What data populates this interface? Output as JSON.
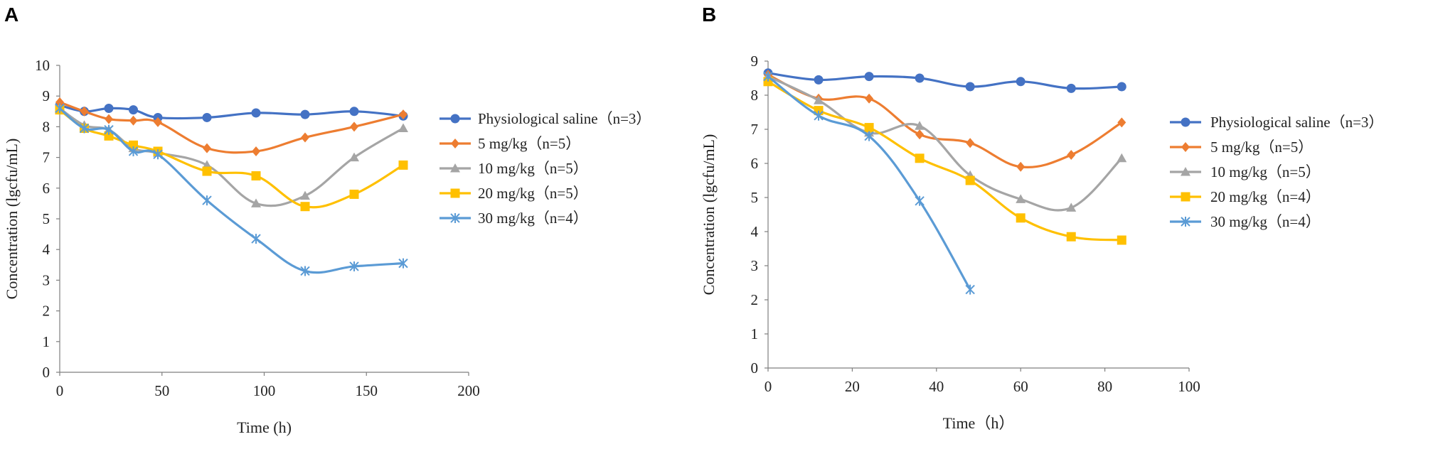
{
  "chart_data": [
    {
      "panel": "A",
      "type": "line",
      "title": "",
      "xlabel": "Time (h)",
      "ylabel": "Concentration (lgcfu/mL)",
      "xlim": [
        0,
        200
      ],
      "ylim": [
        0,
        10
      ],
      "xticks": [
        0,
        50,
        100,
        150,
        200
      ],
      "yticks": [
        0,
        1,
        2,
        3,
        4,
        5,
        6,
        7,
        8,
        9,
        10
      ],
      "grid": false,
      "legend_position": "right",
      "series": [
        {
          "name": "Physiological saline（n=3）",
          "color": "#4472C4",
          "marker": "circle",
          "x": [
            0,
            12,
            24,
            36,
            48,
            72,
            96,
            120,
            144,
            168
          ],
          "y": [
            8.7,
            8.5,
            8.6,
            8.55,
            8.3,
            8.3,
            8.45,
            8.4,
            8.5,
            8.35
          ]
        },
        {
          "name": "5 mg/kg（n=5）",
          "color": "#ED7D31",
          "marker": "diamond",
          "x": [
            0,
            12,
            24,
            36,
            48,
            72,
            96,
            120,
            144,
            168
          ],
          "y": [
            8.8,
            8.5,
            8.25,
            8.2,
            8.15,
            7.3,
            7.2,
            7.65,
            8.0,
            8.4
          ]
        },
        {
          "name": "10 mg/kg（n=5）",
          "color": "#A5A5A5",
          "marker": "triangle",
          "x": [
            0,
            12,
            24,
            36,
            48,
            72,
            96,
            120,
            144,
            168
          ],
          "y": [
            8.6,
            8.05,
            7.9,
            7.3,
            7.15,
            6.75,
            5.5,
            5.75,
            7.0,
            7.95
          ]
        },
        {
          "name": "20 mg/kg（n=5）",
          "color": "#FFC000",
          "marker": "square",
          "x": [
            0,
            12,
            24,
            36,
            48,
            72,
            96,
            120,
            144,
            168
          ],
          "y": [
            8.55,
            7.95,
            7.7,
            7.4,
            7.2,
            6.55,
            6.4,
            5.4,
            5.8,
            6.75
          ]
        },
        {
          "name": "30 mg/kg（n=4）",
          "color": "#5B9BD5",
          "marker": "x",
          "x": [
            0,
            12,
            24,
            36,
            48,
            72,
            96,
            120,
            144,
            168
          ],
          "y": [
            8.6,
            7.95,
            7.9,
            7.2,
            7.1,
            5.6,
            4.35,
            3.3,
            3.45,
            3.55
          ]
        }
      ]
    },
    {
      "panel": "B",
      "type": "line",
      "title": "",
      "xlabel": "Time（h）",
      "ylabel": "Concentration (lgcfu/mL)",
      "xlim": [
        0,
        100
      ],
      "ylim": [
        0,
        9
      ],
      "xticks": [
        0,
        20,
        40,
        60,
        80,
        100
      ],
      "yticks": [
        0,
        1,
        2,
        3,
        4,
        5,
        6,
        7,
        8,
        9
      ],
      "grid": false,
      "legend_position": "right",
      "series": [
        {
          "name": "Physiological saline（n=3）",
          "color": "#4472C4",
          "marker": "circle",
          "x": [
            0,
            12,
            24,
            36,
            48,
            60,
            72,
            84
          ],
          "y": [
            8.65,
            8.45,
            8.55,
            8.5,
            8.25,
            8.4,
            8.2,
            8.25
          ]
        },
        {
          "name": "5 mg/kg（n=5）",
          "color": "#ED7D31",
          "marker": "diamond",
          "x": [
            0,
            12,
            24,
            36,
            48,
            60,
            72,
            84
          ],
          "y": [
            8.6,
            7.9,
            7.9,
            6.85,
            6.6,
            5.9,
            6.25,
            7.2
          ]
        },
        {
          "name": "10 mg/kg（n=5）",
          "color": "#A5A5A5",
          "marker": "triangle",
          "x": [
            0,
            12,
            24,
            36,
            48,
            60,
            72,
            84
          ],
          "y": [
            8.55,
            7.85,
            6.9,
            7.1,
            5.65,
            4.95,
            4.7,
            6.15
          ]
        },
        {
          "name": "20 mg/kg（n=4）",
          "color": "#FFC000",
          "marker": "square",
          "x": [
            0,
            12,
            24,
            36,
            48,
            60,
            72,
            84
          ],
          "y": [
            8.4,
            7.55,
            7.05,
            6.15,
            5.5,
            4.4,
            3.85,
            3.75
          ]
        },
        {
          "name": "30 mg/kg（n=4）",
          "color": "#5B9BD5",
          "marker": "x",
          "x": [
            0,
            12,
            24,
            36,
            48
          ],
          "y": [
            8.55,
            7.4,
            6.8,
            4.9,
            2.3
          ]
        }
      ]
    }
  ]
}
